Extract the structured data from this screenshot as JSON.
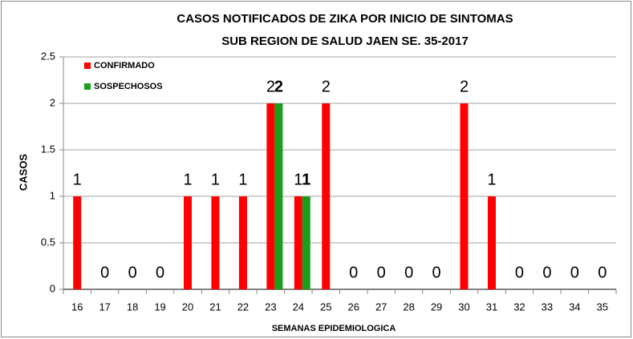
{
  "chart_data": {
    "type": "bar",
    "title": [
      "CASOS NOTIFICADOS DE ZIKA POR INICIO DE SINTOMAS",
      "SUB REGION DE SALUD JAEN SE. 35-2017"
    ],
    "xlabel": "SEMANAS EPIDEMIOLOGICA",
    "ylabel": "CASOS",
    "categories": [
      "16",
      "17",
      "18",
      "19",
      "20",
      "21",
      "22",
      "23",
      "24",
      "25",
      "26",
      "27",
      "28",
      "29",
      "30",
      "31",
      "32",
      "33",
      "34",
      "35"
    ],
    "series": [
      {
        "name": "CONFIRMADO",
        "color": "#ff0000",
        "values": [
          1,
          0,
          0,
          0,
          1,
          1,
          1,
          2,
          1,
          2,
          0,
          0,
          0,
          0,
          2,
          1,
          0,
          0,
          0,
          0
        ]
      },
      {
        "name": "SOSPECHOSOS",
        "color": "#1a9e1a",
        "values": [
          null,
          null,
          null,
          null,
          null,
          null,
          null,
          2,
          1,
          null,
          null,
          null,
          null,
          null,
          null,
          null,
          null,
          null,
          null,
          null
        ]
      }
    ],
    "ylim": [
      0,
      2.5
    ],
    "yticks": [
      0,
      0.5,
      1,
      1.5,
      2,
      2.5
    ],
    "grid": true,
    "legend": "upper left"
  }
}
